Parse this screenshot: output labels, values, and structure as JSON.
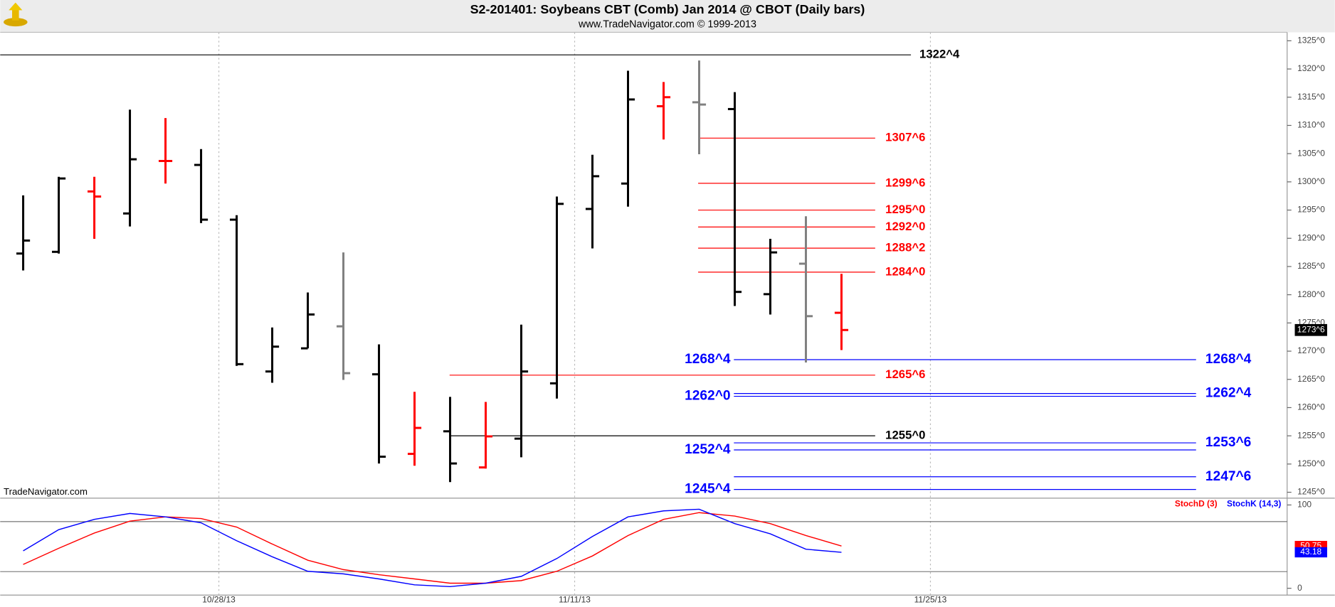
{
  "chart_data": [
    {
      "type": "ohlc",
      "title": "S2-201401:  Soybeans CBT (Comb) Jan 2014 @ CBOT  (Daily bars)",
      "subtitle": "www.TradeNavigator.com © 1999-2013",
      "watermark": "TradeNavigator.com",
      "categories": [
        null,
        null,
        null,
        null,
        null,
        null,
        "10/28/13",
        null,
        null,
        null,
        null,
        null,
        null,
        null,
        null,
        null,
        "11/11/13",
        null,
        null,
        null,
        null,
        null,
        null,
        null,
        null,
        null,
        "11/25/13",
        null,
        null,
        null,
        null,
        null,
        null,
        null,
        null,
        null
      ],
      "open": [
        1287.3,
        1287.6,
        1298.3,
        1294.4,
        1303.7,
        1303.0,
        1293.3,
        1266.4,
        1270.5,
        1274.4,
        1265.9,
        1251.8,
        1255.8,
        1249.4,
        1254.5,
        1264.3,
        1295.2,
        1299.7,
        1313.4,
        1314.1,
        1312.9,
        1280.1,
        1285.5,
        1276.8,
        null,
        null,
        null,
        null,
        null,
        null,
        null,
        null,
        null,
        null,
        null,
        null
      ],
      "high": [
        1297.6,
        1300.9,
        1300.9,
        1312.8,
        1311.3,
        1305.8,
        1294.1,
        1274.2,
        1280.4,
        1287.5,
        1271.2,
        1262.8,
        1261.9,
        1261.0,
        1274.7,
        1297.4,
        1304.8,
        1319.7,
        1317.7,
        1321.5,
        1315.9,
        1289.9,
        1293.9,
        1283.7,
        null,
        null,
        null,
        null,
        null,
        null,
        null,
        null,
        null,
        null,
        null,
        null
      ],
      "low": [
        1284.3,
        1287.3,
        1289.9,
        1292.1,
        1299.7,
        1292.7,
        1267.4,
        1264.4,
        1270.5,
        1264.9,
        1250.1,
        1249.7,
        1246.8,
        1249.2,
        1251.2,
        1261.6,
        1288.2,
        1295.6,
        1307.5,
        1304.9,
        1278.0,
        1276.5,
        1268.0,
        1270.2,
        null,
        null,
        null,
        null,
        null,
        null,
        null,
        null,
        null,
        null,
        null,
        null
      ],
      "close": [
        1289.6,
        1300.6,
        1297.4,
        1304.0,
        1303.7,
        1293.3,
        1267.7,
        1270.8,
        1276.5,
        1266.1,
        1251.3,
        1256.4,
        1250.1,
        1254.9,
        1266.4,
        1296.1,
        1301.0,
        1314.6,
        1315.0,
        1313.7,
        1280.5,
        1287.5,
        1276.2,
        1273.75,
        null,
        null,
        null,
        null,
        null,
        null,
        null,
        null,
        null,
        null,
        null,
        null
      ],
      "colors": [
        "#000000",
        "#000000",
        "#ff0000",
        "#000000",
        "#ff0000",
        "#000000",
        "#000000",
        "#000000",
        "#000000",
        "#808080",
        "#000000",
        "#ff0000",
        "#000000",
        "#ff0000",
        "#000000",
        "#000000",
        "#000000",
        "#000000",
        "#ff0000",
        "#808080",
        "#000000",
        "#000000",
        "#808080",
        "#ff0000",
        null,
        null,
        null,
        null,
        null,
        null,
        null,
        null,
        null,
        null,
        null,
        null
      ],
      "ylim": [
        1244.1,
        1326.5
      ],
      "yticks": [
        {
          "value": 1245,
          "label": "1245^0"
        },
        {
          "value": 1250,
          "label": "1250^0"
        },
        {
          "value": 1255,
          "label": "1255^0"
        },
        {
          "value": 1260,
          "label": "1260^0"
        },
        {
          "value": 1265,
          "label": "1265^0"
        },
        {
          "value": 1270,
          "label": "1270^0"
        },
        {
          "value": 1275,
          "label": "1275^0"
        },
        {
          "value": 1280,
          "label": "1280^0"
        },
        {
          "value": 1285,
          "label": "1285^0"
        },
        {
          "value": 1290,
          "label": "1290^0"
        },
        {
          "value": 1295,
          "label": "1295^0"
        },
        {
          "value": 1300,
          "label": "1300^0"
        },
        {
          "value": 1305,
          "label": "1305^0"
        },
        {
          "value": 1310,
          "label": "1310^0"
        },
        {
          "value": 1315,
          "label": "1315^0"
        },
        {
          "value": 1320,
          "label": "1320^0"
        },
        {
          "value": 1325,
          "label": "1325^0"
        }
      ],
      "levels": [
        {
          "value": 1322.5,
          "label": "1322^4",
          "color": "#000000"
        },
        {
          "value": 1307.75,
          "label": "1307^6",
          "color": "#ff0000"
        },
        {
          "value": 1299.75,
          "label": "1299^6",
          "color": "#ff0000"
        },
        {
          "value": 1295,
          "label": "1295^0",
          "color": "#ff0000"
        },
        {
          "value": 1292,
          "label": "1292^0",
          "color": "#ff0000"
        },
        {
          "value": 1288.25,
          "label": "1288^2",
          "color": "#ff0000"
        },
        {
          "value": 1284,
          "label": "1284^0",
          "color": "#ff0000"
        },
        {
          "value": 1265.75,
          "label": "1265^6",
          "color": "#ff0000"
        },
        {
          "value": 1255,
          "label": "1255^0",
          "color": "#000000"
        },
        {
          "value": 1268.5,
          "label": "1268^4",
          "color": "#0000ff"
        },
        {
          "value": 1262,
          "label": "1262^0",
          "color": "#0000ff"
        },
        {
          "value": 1262.5,
          "label": "1262^4",
          "color": "#0000ff"
        },
        {
          "value": 1253.75,
          "label": "1253^6",
          "color": "#0000ff"
        },
        {
          "value": 1252.5,
          "label": "1252^4",
          "color": "#0000ff"
        },
        {
          "value": 1247.75,
          "label": "1247^6",
          "color": "#0000ff"
        },
        {
          "value": 1245.5,
          "label": "1245^4",
          "color": "#0000ff"
        }
      ],
      "last": {
        "value": 1273.75,
        "label": "1273^6"
      }
    },
    {
      "type": "line",
      "series": [
        {
          "name": "StochD (3)",
          "color": "#ff0000",
          "values": [
            28.6,
            48.0,
            66.3,
            80.6,
            85.7,
            83.7,
            73.5,
            53.1,
            33.7,
            22.4,
            16.3,
            11.2,
            6.1,
            6.1,
            9.2,
            20.4,
            38.8,
            63.3,
            82.7,
            90.8,
            86.7,
            77.6,
            63.3,
            50.75,
            null,
            null,
            null,
            null,
            null,
            null,
            null,
            null,
            null,
            null,
            null,
            null
          ]
        },
        {
          "name": "StochK (14,3)",
          "color": "#0000ff",
          "values": [
            44.9,
            70.4,
            82.7,
            89.8,
            85.7,
            78.6,
            57.1,
            37.8,
            20.4,
            17.3,
            11.2,
            4.1,
            2.0,
            6.1,
            14.3,
            35.7,
            62.2,
            85.7,
            92.9,
            94.9,
            77.6,
            65.3,
            46.9,
            43.18,
            null,
            null,
            null,
            null,
            null,
            null,
            null,
            null,
            null,
            null,
            null,
            null
          ]
        }
      ],
      "ylim": [
        -8.2,
        106.1
      ],
      "yticks": [
        0,
        100
      ],
      "hlines": [
        20,
        80
      ]
    }
  ]
}
